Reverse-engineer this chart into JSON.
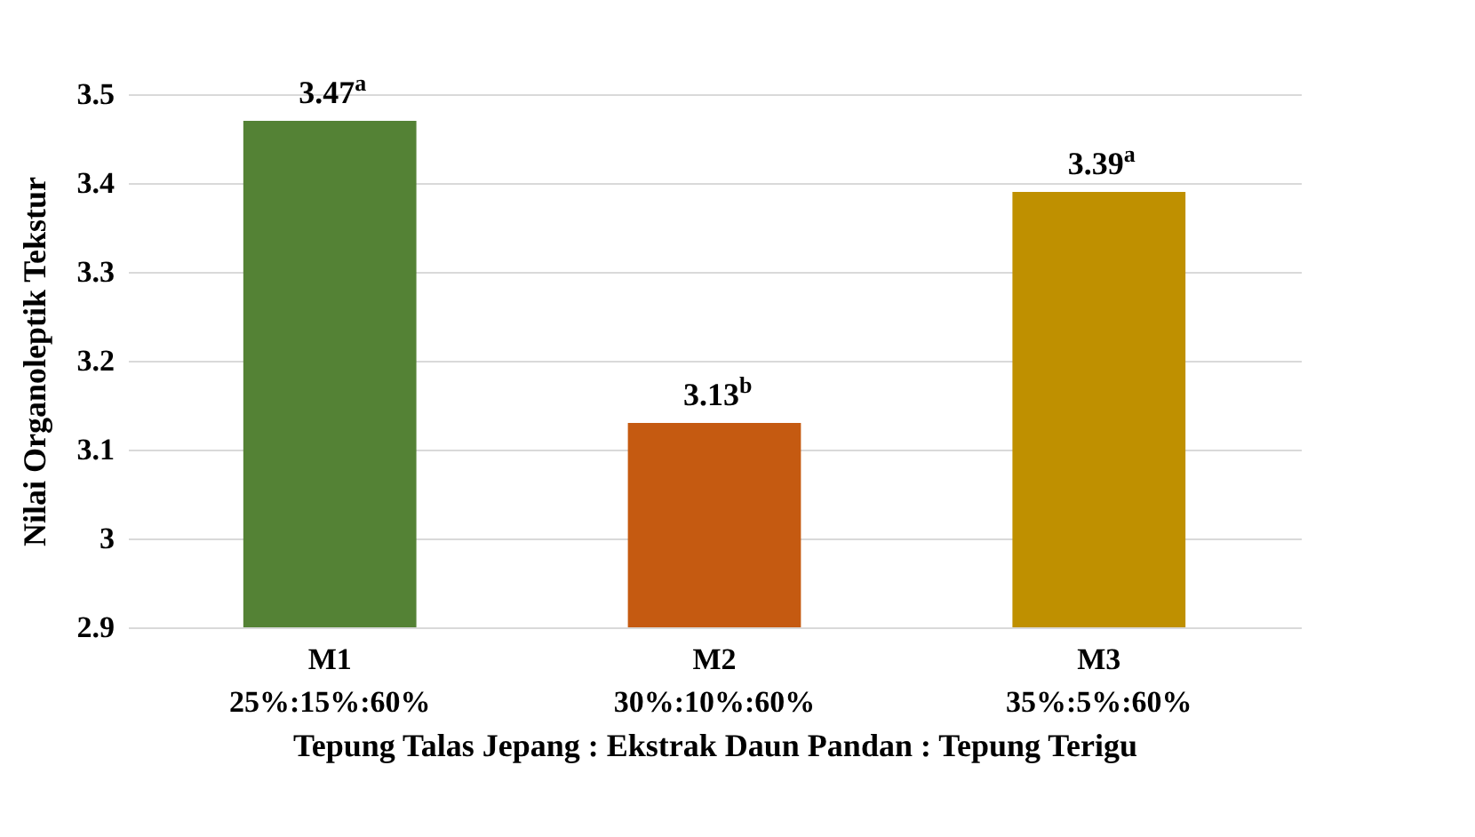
{
  "chart_data": {
    "type": "bar",
    "ylabel": "Nilai Organoleptik Tekstur",
    "xlabel": "Tepung Talas Jepang : Ekstrak Daun Pandan : Tepung Terigu",
    "categories": [
      "M1\n25%:15%:60%",
      "M2\n30%:10%:60%",
      "M3\n35%:5%:60%"
    ],
    "values": [
      3.47,
      3.13,
      3.39
    ],
    "colors": [
      "#548235",
      "#c55a11",
      "#bf9000"
    ],
    "value_labels": [
      "3.47$^{a}$",
      "3.13$^{b}$",
      "3.39$^{a}$"
    ],
    "ylim": [
      2.9,
      3.5
    ],
    "yticks": [
      2.9,
      3,
      3.1,
      3.2,
      3.3,
      3.4,
      3.5
    ],
    "grid": "y"
  }
}
